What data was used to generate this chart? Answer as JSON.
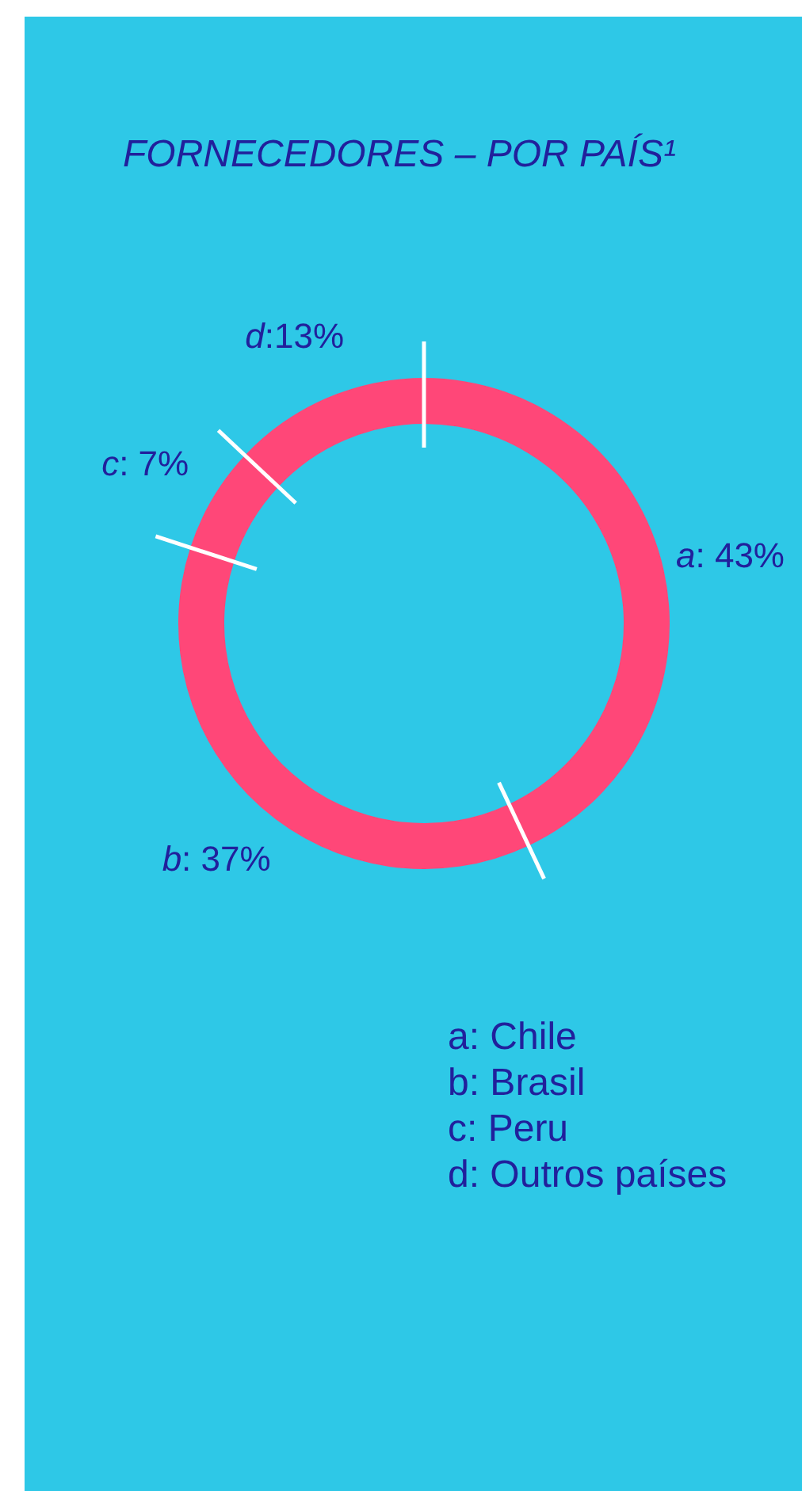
{
  "chart_data": {
    "type": "donut",
    "title": "FORNECEDORES – POR PAÍS¹",
    "categories": [
      "a",
      "b",
      "c",
      "d"
    ],
    "values": [
      43,
      37,
      7,
      13
    ],
    "value_labels": [
      ": 43%",
      ": 37%",
      ": 7%",
      ":13%"
    ],
    "colors": [
      "#ff4778",
      "#ff4778",
      "#ff4778",
      "#ff4778"
    ],
    "annotations": [
      "a: Chile",
      "b: Brasil",
      "c: Peru",
      "d: Outros países"
    ]
  }
}
